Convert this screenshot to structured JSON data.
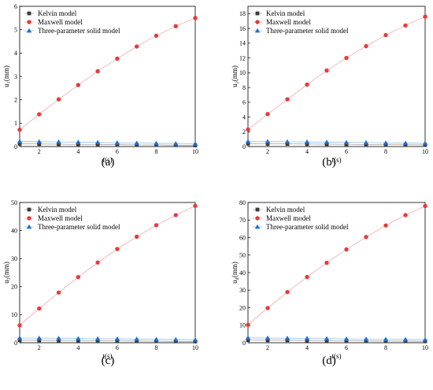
{
  "colors": {
    "kelvin": "#3a3a3a",
    "maxwell": "#e83a3a",
    "three_param": "#1f6fd1",
    "kelvin_line": "#9a9a9a",
    "maxwell_line": "#f0a0a0",
    "three_param_line": "#8ab8ea"
  },
  "chart_data": [
    {
      "type": "line",
      "panel_label": "(a)",
      "xlabel": "t(s)",
      "ylabel": "u₁(mm)",
      "xlim": [
        1,
        10
      ],
      "ylim": [
        0,
        6
      ],
      "xticks": [
        2,
        4,
        6,
        8,
        10
      ],
      "yticks": [
        0,
        1,
        2,
        3,
        4,
        5,
        6
      ],
      "legend_position": "top-left",
      "grid": false,
      "x": [
        1,
        2,
        3,
        4,
        5,
        6,
        7,
        8,
        9,
        10
      ],
      "series": [
        {
          "name": "Kelvin model",
          "marker": "square",
          "values": [
            0.12,
            0.11,
            0.1,
            0.09,
            0.09,
            0.08,
            0.07,
            0.07,
            0.06,
            0.05
          ]
        },
        {
          "name": "Maxwell model",
          "marker": "circle",
          "values": [
            0.72,
            1.38,
            2.02,
            2.63,
            3.22,
            3.76,
            4.28,
            4.74,
            5.15,
            5.5
          ]
        },
        {
          "name": "Three-parameter solid model",
          "marker": "triangle",
          "values": [
            0.22,
            0.21,
            0.2,
            0.19,
            0.18,
            0.16,
            0.15,
            0.14,
            0.13,
            0.12
          ]
        }
      ]
    },
    {
      "type": "line",
      "panel_label": "(b)",
      "xlabel": "t(s)",
      "ylabel": "u₂(mm)",
      "xlim": [
        1,
        10
      ],
      "ylim": [
        0,
        19
      ],
      "xticks": [
        2,
        4,
        6,
        8,
        10
      ],
      "yticks": [
        0,
        2,
        4,
        6,
        8,
        10,
        12,
        14,
        16,
        18
      ],
      "legend_position": "top-left",
      "grid": false,
      "x": [
        1,
        2,
        3,
        4,
        5,
        6,
        7,
        8,
        9,
        10
      ],
      "series": [
        {
          "name": "Kelvin model",
          "marker": "square",
          "values": [
            0.4,
            0.38,
            0.36,
            0.34,
            0.32,
            0.3,
            0.28,
            0.26,
            0.24,
            0.22
          ]
        },
        {
          "name": "Maxwell model",
          "marker": "circle",
          "values": [
            2.3,
            4.4,
            6.4,
            8.4,
            10.3,
            12.0,
            13.6,
            15.1,
            16.4,
            17.6
          ]
        },
        {
          "name": "Three-parameter solid model",
          "marker": "triangle",
          "values": [
            0.7,
            0.68,
            0.66,
            0.63,
            0.6,
            0.57,
            0.54,
            0.5,
            0.47,
            0.44
          ]
        }
      ]
    },
    {
      "type": "line",
      "panel_label": "(c)",
      "xlabel": "t(s)",
      "ylabel": "u₃(mm)",
      "xlim": [
        1,
        10
      ],
      "ylim": [
        0,
        50
      ],
      "xticks": [
        2,
        4,
        6,
        8,
        10
      ],
      "yticks": [
        0,
        10,
        20,
        30,
        40,
        50
      ],
      "legend_position": "top-left",
      "grid": false,
      "x": [
        1,
        2,
        3,
        4,
        5,
        6,
        7,
        8,
        9,
        10
      ],
      "series": [
        {
          "name": "Kelvin model",
          "marker": "square",
          "values": [
            0.9,
            0.85,
            0.8,
            0.75,
            0.7,
            0.65,
            0.6,
            0.55,
            0.5,
            0.45
          ]
        },
        {
          "name": "Maxwell model",
          "marker": "circle",
          "values": [
            6.2,
            12.2,
            17.9,
            23.4,
            28.6,
            33.4,
            37.8,
            41.9,
            45.5,
            48.8
          ]
        },
        {
          "name": "Three-parameter solid model",
          "marker": "triangle",
          "values": [
            1.7,
            1.65,
            1.6,
            1.5,
            1.45,
            1.4,
            1.3,
            1.2,
            1.15,
            1.05
          ]
        }
      ]
    },
    {
      "type": "line",
      "panel_label": "(d)",
      "xlabel": "t(s)",
      "ylabel": "u₄(mm)",
      "xlim": [
        1,
        10
      ],
      "ylim": [
        0,
        80
      ],
      "xticks": [
        2,
        4,
        6,
        8,
        10
      ],
      "yticks": [
        0,
        10,
        20,
        30,
        40,
        50,
        60,
        70,
        80
      ],
      "legend_position": "top-left",
      "grid": false,
      "x": [
        1,
        2,
        3,
        4,
        5,
        6,
        7,
        8,
        9,
        10
      ],
      "series": [
        {
          "name": "Kelvin model",
          "marker": "square",
          "values": [
            1.5,
            1.45,
            1.4,
            1.3,
            1.2,
            1.1,
            1.0,
            0.95,
            0.9,
            0.8
          ]
        },
        {
          "name": "Maxwell model",
          "marker": "circle",
          "values": [
            10.2,
            19.8,
            28.9,
            37.5,
            45.6,
            53.2,
            60.3,
            66.9,
            72.8,
            78.0
          ]
        },
        {
          "name": "Three-parameter solid model",
          "marker": "triangle",
          "values": [
            2.8,
            2.7,
            2.6,
            2.5,
            2.35,
            2.2,
            2.1,
            2.0,
            1.9,
            1.75
          ]
        }
      ]
    }
  ]
}
